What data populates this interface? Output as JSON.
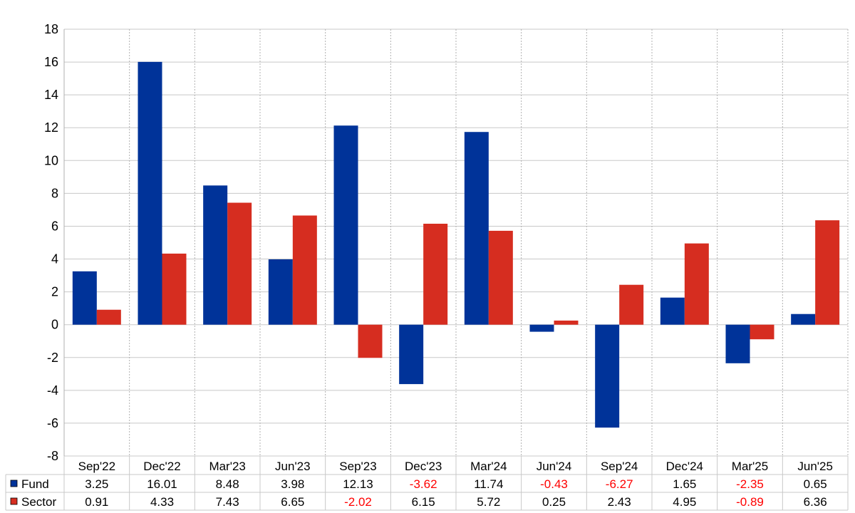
{
  "chart_data": {
    "type": "bar",
    "categories": [
      "Sep'22",
      "Dec'22",
      "Mar'23",
      "Jun'23",
      "Sep'23",
      "Dec'23",
      "Mar'24",
      "Jun'24",
      "Sep'24",
      "Dec'24",
      "Mar'25",
      "Jun'25"
    ],
    "series": [
      {
        "name": "Fund",
        "color": "#003399",
        "values": [
          3.25,
          16.01,
          8.48,
          3.98,
          12.13,
          -3.62,
          11.74,
          -0.43,
          -6.27,
          1.65,
          -2.35,
          0.65
        ]
      },
      {
        "name": "Sector",
        "color": "#d62d20",
        "values": [
          0.91,
          4.33,
          7.43,
          6.65,
          -2.02,
          6.15,
          5.72,
          0.25,
          2.43,
          4.95,
          -0.89,
          6.36
        ]
      }
    ],
    "ylim": [
      -8,
      18
    ],
    "yticks": [
      -8,
      -6,
      -4,
      -2,
      0,
      2,
      4,
      6,
      8,
      10,
      12,
      14,
      16,
      18
    ],
    "grid": true,
    "legend": "data-table",
    "negative_value_color": "#ff0000",
    "title": "",
    "xlabel": "",
    "ylabel": ""
  }
}
